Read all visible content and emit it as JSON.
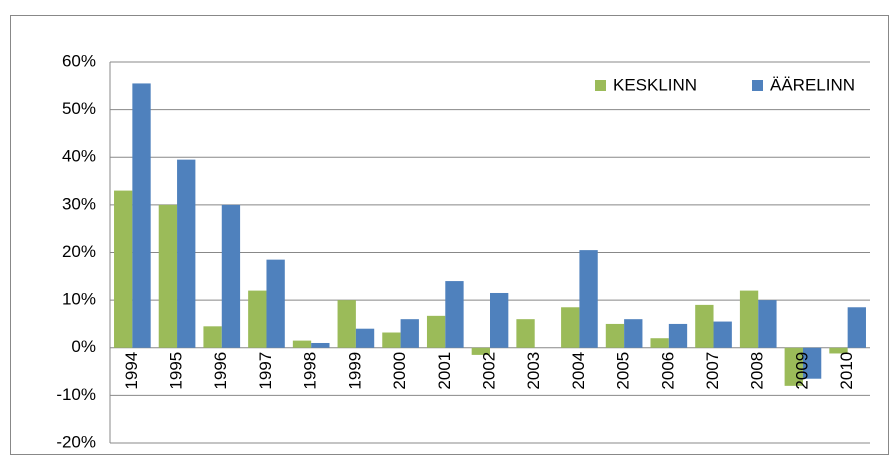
{
  "chart_data": {
    "type": "bar",
    "categories": [
      "1994",
      "1995",
      "1996",
      "1997",
      "1998",
      "1999",
      "2000",
      "2001",
      "2002",
      "2003",
      "2004",
      "2005",
      "2006",
      "2007",
      "2008",
      "2009",
      "2010"
    ],
    "series": [
      {
        "name": "KESKLINN",
        "color": "#9bbb59",
        "values": [
          33,
          30,
          4.5,
          12,
          1.5,
          10,
          3.2,
          6.7,
          -1.5,
          6,
          8.5,
          5,
          2,
          9,
          12,
          -8,
          -1.2
        ]
      },
      {
        "name": "ÄÄRELINN",
        "color": "#4f81bd",
        "values": [
          55.5,
          39.5,
          30,
          18.5,
          1,
          4,
          6,
          14,
          11.5,
          null,
          20.5,
          6,
          5,
          5.5,
          10,
          -6.5,
          8.5
        ]
      }
    ],
    "ylim": [
      -20,
      60
    ],
    "yticks": [
      {
        "value": -20,
        "label": "-20%"
      },
      {
        "value": -10,
        "label": "-10%"
      },
      {
        "value": 0,
        "label": "0%"
      },
      {
        "value": 10,
        "label": "10%"
      },
      {
        "value": 20,
        "label": "20%"
      },
      {
        "value": 30,
        "label": "30%"
      },
      {
        "value": 40,
        "label": "40%"
      },
      {
        "value": 50,
        "label": "50%"
      },
      {
        "value": 60,
        "label": "60%"
      }
    ],
    "grid": true,
    "legend": "top-right"
  }
}
